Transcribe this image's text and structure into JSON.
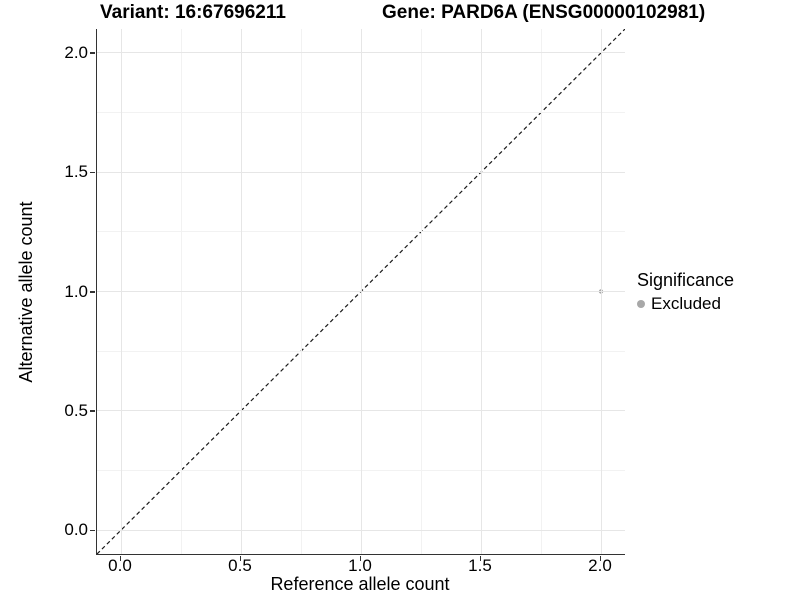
{
  "title": {
    "variant": "Variant: 16:67696211",
    "gene": "Gene: PARD6A (ENSG00000102981)"
  },
  "axes": {
    "x_label": "Reference allele count",
    "y_label": "Alternative allele count",
    "x_tick_labels": [
      "0.0",
      "0.5",
      "1.0",
      "1.5",
      "2.0"
    ],
    "y_tick_labels": [
      "0.0",
      "0.5",
      "1.0",
      "1.5",
      "2.0"
    ]
  },
  "legend": {
    "title": "Significance",
    "items": [
      {
        "label": "Excluded",
        "color": "#a8a8a8"
      }
    ]
  },
  "colors": {
    "axis_line": "#333333",
    "grid_major": "#e6e6e6",
    "grid_minor": "#f2f2f2",
    "reference_line": "#1a1a1a",
    "point": "#a8a8a8",
    "text": "#000000",
    "background": "#ffffff"
  },
  "chart_data": {
    "type": "scatter",
    "title": "Variant: 16:67696211   Gene: PARD6A (ENSG00000102981)",
    "xlabel": "Reference allele count",
    "ylabel": "Alternative allele count",
    "xlim": [
      -0.1,
      2.1
    ],
    "ylim": [
      -0.1,
      2.1
    ],
    "x_ticks": [
      0.0,
      0.5,
      1.0,
      1.5,
      2.0
    ],
    "y_ticks": [
      0.0,
      0.5,
      1.0,
      1.5,
      2.0
    ],
    "x_minor_ticks": [
      0.25,
      0.75,
      1.25,
      1.75
    ],
    "y_minor_ticks": [
      0.25,
      0.75,
      1.25,
      1.75
    ],
    "grid": true,
    "legend_position": "right",
    "series": [
      {
        "name": "Excluded",
        "color": "#a8a8a8",
        "point_radius": 2.2,
        "points": [
          {
            "x": 2.0,
            "y": 1.0
          }
        ]
      }
    ],
    "reference_line": {
      "style": "dashed",
      "color": "#1a1a1a",
      "from": [
        -0.1,
        -0.1
      ],
      "to": [
        2.1,
        2.1
      ],
      "description": "y = x identity line"
    }
  }
}
